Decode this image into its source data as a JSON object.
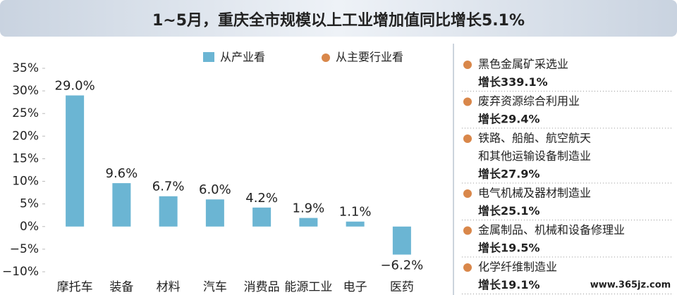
{
  "chart_data": {
    "type": "bar",
    "title": "1~5月，重庆全市规模以上工业增加值同比增长5.1%",
    "categories": [
      "摩托车",
      "装备",
      "材料",
      "汽车",
      "消费品",
      "能源工业",
      "电子",
      "医药"
    ],
    "series": [
      {
        "name": "从产业看",
        "color": "#6bb5d3",
        "values": [
          29.0,
          9.6,
          6.7,
          6.0,
          4.2,
          1.9,
          1.1,
          -6.2
        ],
        "value_labels": [
          "29.0%",
          "9.6%",
          "6.7%",
          "6.0%",
          "4.2%",
          "1.9%",
          "1.1%",
          "−6.2%"
        ]
      }
    ],
    "ylim": [
      -10,
      35
    ],
    "yticks": [
      {
        "value": -10,
        "label": "−10%"
      },
      {
        "value": -5,
        "label": "−5%"
      },
      {
        "value": 0,
        "label": "0%"
      },
      {
        "value": 5,
        "label": "5%"
      },
      {
        "value": 10,
        "label": "10%"
      },
      {
        "value": 15,
        "label": "15%"
      },
      {
        "value": 20,
        "label": "20%"
      },
      {
        "value": 25,
        "label": "25%"
      },
      {
        "value": 30,
        "label": "30%"
      },
      {
        "value": 35,
        "label": "35%"
      }
    ],
    "grid": false
  },
  "industry_list": {
    "name": "从主要行业看",
    "color": "#d9874a",
    "items": [
      {
        "lines": [
          "黑色金属矿采选业"
        ],
        "growth": "增长339.1%"
      },
      {
        "lines": [
          "废弃资源综合利用业"
        ],
        "growth": "增长29.4%"
      },
      {
        "lines": [
          "铁路、船舶、航空航天",
          "和其他运输设备制造业"
        ],
        "growth": "增长27.9%"
      },
      {
        "lines": [
          "电气机械及器材制造业"
        ],
        "growth": "增长25.1%"
      },
      {
        "lines": [
          "金属制品、机械和设备修理业"
        ],
        "growth": "增长19.5%"
      },
      {
        "lines": [
          "化学纤维制造业"
        ],
        "growth": "增长19.1%"
      }
    ]
  },
  "watermark": "www.365jz.com"
}
